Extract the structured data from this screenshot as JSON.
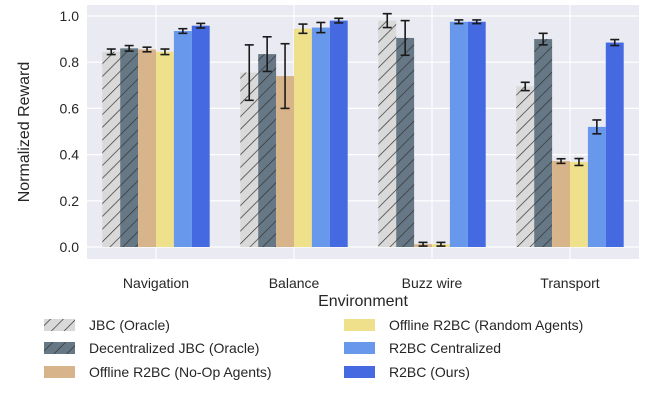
{
  "chart_data": {
    "type": "bar",
    "xlabel": "Environment",
    "ylabel": "Normalized Reward",
    "ylim": [
      0,
      1.0
    ],
    "yticks": [
      0.0,
      0.2,
      0.4,
      0.6,
      0.8,
      1.0
    ],
    "ytick_labels": [
      "0.0",
      "0.2",
      "0.4",
      "0.6",
      "0.8",
      "1.0"
    ],
    "grid": true,
    "legend_position": "below",
    "categories": [
      "Navigation",
      "Balance",
      "Buzz wire",
      "Transport"
    ],
    "series": [
      {
        "name": "JBC (Oracle)",
        "color": "#d9d9d9",
        "hatch": true,
        "values": [
          0.845,
          0.755,
          0.98,
          0.695
        ],
        "errors": [
          0.012,
          0.12,
          0.03,
          0.018
        ]
      },
      {
        "name": "Decentralized JBC (Oracle)",
        "color": "#667885",
        "hatch": true,
        "values": [
          0.86,
          0.835,
          0.905,
          0.9
        ],
        "errors": [
          0.012,
          0.075,
          0.075,
          0.025
        ]
      },
      {
        "name": "Offline R2BC (No-Op Agents)",
        "color": "#d8b48a",
        "hatch": false,
        "values": [
          0.855,
          0.74,
          0.012,
          0.372
        ],
        "errors": [
          0.01,
          0.14,
          0.008,
          0.01
        ]
      },
      {
        "name": "Offline R2BC (Random Agents)",
        "color": "#efe18c",
        "hatch": false,
        "values": [
          0.845,
          0.945,
          0.012,
          0.368
        ],
        "errors": [
          0.012,
          0.02,
          0.008,
          0.015
        ]
      },
      {
        "name": "R2BC Centralized",
        "color": "#6898ec",
        "hatch": false,
        "values": [
          0.935,
          0.95,
          0.975,
          0.52
        ],
        "errors": [
          0.01,
          0.022,
          0.008,
          0.03
        ]
      },
      {
        "name": "R2BC (Ours)",
        "color": "#4469e0",
        "hatch": false,
        "values": [
          0.958,
          0.98,
          0.975,
          0.885
        ],
        "errors": [
          0.01,
          0.01,
          0.008,
          0.013
        ]
      }
    ]
  }
}
